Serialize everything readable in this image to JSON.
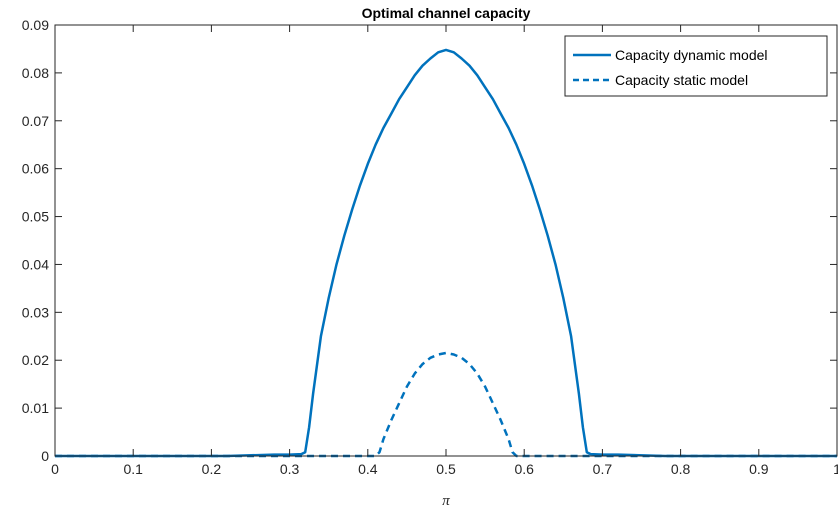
{
  "chart_data": {
    "type": "line",
    "title": "Optimal channel capacity",
    "xlabel": "π",
    "ylabel": "",
    "xlim": [
      0,
      1
    ],
    "ylim": [
      0,
      0.09
    ],
    "xticks": [
      "0",
      "0.1",
      "0.2",
      "0.3",
      "0.4",
      "0.5",
      "0.6",
      "0.7",
      "0.8",
      "0.9",
      "1"
    ],
    "yticks": [
      "0",
      "0.01",
      "0.02",
      "0.03",
      "0.04",
      "0.05",
      "0.06",
      "0.07",
      "0.08",
      "0.09"
    ],
    "grid": false,
    "legend_position": "top-right",
    "color": "#0072BD",
    "series": [
      {
        "name": "Capacity dynamic model",
        "style": "solid",
        "x": [
          0,
          0.22,
          0.28,
          0.3,
          0.315,
          0.32,
          0.325,
          0.33,
          0.34,
          0.35,
          0.36,
          0.37,
          0.38,
          0.39,
          0.4,
          0.41,
          0.42,
          0.43,
          0.44,
          0.45,
          0.46,
          0.47,
          0.48,
          0.49,
          0.5,
          0.51,
          0.52,
          0.53,
          0.54,
          0.55,
          0.56,
          0.57,
          0.58,
          0.59,
          0.6,
          0.61,
          0.62,
          0.63,
          0.64,
          0.65,
          0.66,
          0.67,
          0.675,
          0.68,
          0.685,
          0.7,
          0.72,
          0.78,
          1
        ],
        "y": [
          0,
          0,
          0.0003,
          0.0003,
          0.0004,
          0.0008,
          0.006,
          0.013,
          0.025,
          0.033,
          0.04,
          0.046,
          0.0515,
          0.0565,
          0.061,
          0.065,
          0.0685,
          0.0715,
          0.0745,
          0.077,
          0.0795,
          0.0815,
          0.083,
          0.0843,
          0.0848,
          0.0843,
          0.083,
          0.0815,
          0.0795,
          0.077,
          0.0745,
          0.0715,
          0.0685,
          0.065,
          0.061,
          0.0565,
          0.0515,
          0.046,
          0.04,
          0.033,
          0.025,
          0.013,
          0.006,
          0.0008,
          0.0004,
          0.0003,
          0.0003,
          0,
          0
        ]
      },
      {
        "name": "Capacity static model",
        "style": "dashed",
        "x": [
          0,
          0.41,
          0.415,
          0.42,
          0.43,
          0.44,
          0.45,
          0.46,
          0.47,
          0.48,
          0.49,
          0.5,
          0.51,
          0.52,
          0.53,
          0.54,
          0.55,
          0.56,
          0.57,
          0.58,
          0.585,
          0.59,
          1
        ],
        "y": [
          0,
          0,
          0.0008,
          0.0035,
          0.0075,
          0.011,
          0.0145,
          0.0172,
          0.0192,
          0.0205,
          0.0212,
          0.0215,
          0.0212,
          0.0205,
          0.0192,
          0.0172,
          0.0145,
          0.011,
          0.0075,
          0.0035,
          0.0008,
          0,
          0
        ]
      }
    ]
  }
}
